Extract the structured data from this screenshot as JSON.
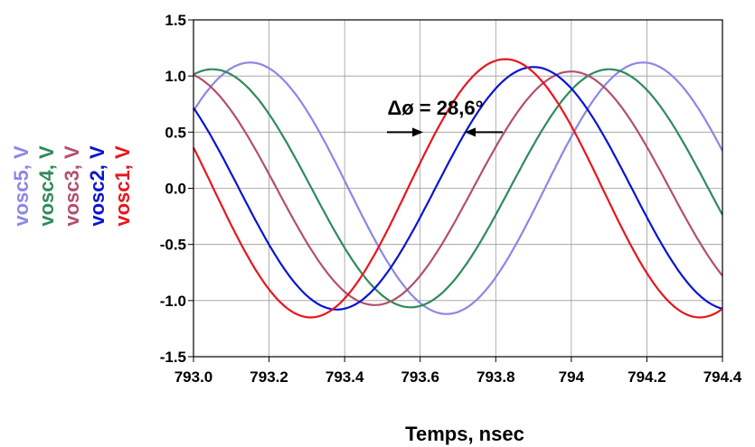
{
  "chart_data": {
    "type": "line",
    "xlabel": "Temps, nsec",
    "x_ticks": [
      "793.0",
      "793.2",
      "793.4",
      "793.6",
      "793.8",
      "794",
      "794.2",
      "794.4"
    ],
    "y_ticks": [
      "1.5",
      "1.0",
      "0.5",
      "0.0",
      "-0.5",
      "-1.0",
      "-1.5"
    ],
    "xlim": [
      793.0,
      794.4
    ],
    "ylim": [
      -1.5,
      1.5
    ],
    "grid": true,
    "series": [
      {
        "name": "vosc5, V",
        "color": "#8c86e6",
        "amplitude": 1.12,
        "peaks_x": [
          793.15,
          794.19
        ],
        "troughs_x": [
          793.68
        ]
      },
      {
        "name": "vosc4, V",
        "color": "#2e8b5c",
        "amplitude": 1.06,
        "peaks_x": [
          793.05,
          794.1
        ],
        "troughs_x": [
          793.59
        ]
      },
      {
        "name": "vosc3, V",
        "color": "#b2506e",
        "amplitude": 1.04,
        "peaks_x": [
          794.0
        ],
        "troughs_x": [
          793.48
        ]
      },
      {
        "name": "vosc2, V",
        "color": "#0a14d2",
        "amplitude": 1.08,
        "peaks_x": [
          793.9
        ],
        "troughs_x": [
          793.38
        ]
      },
      {
        "name": "vosc1, V",
        "color": "#e8161c",
        "amplitude": 1.15,
        "peaks_x": [
          793.82
        ],
        "troughs_x": [
          793.31,
          794.34
        ]
      }
    ],
    "annotation": {
      "text": "Δø = 28,6°",
      "x": 793.64,
      "y": 0.72
    }
  }
}
